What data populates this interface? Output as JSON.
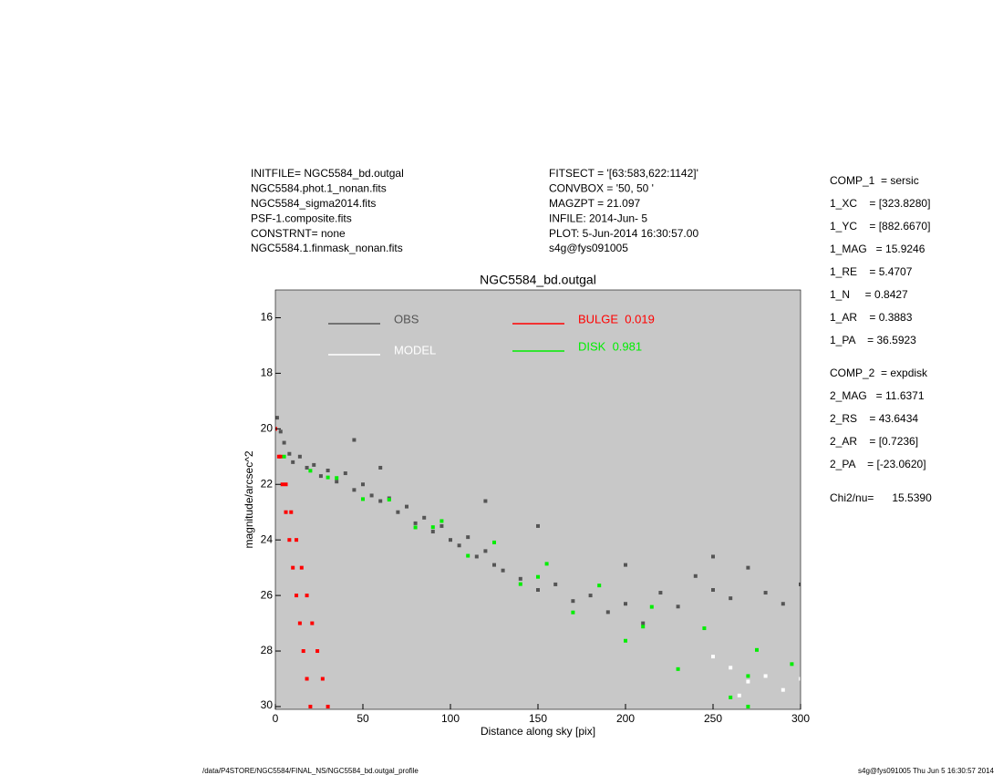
{
  "chart_data": {
    "type": "scatter",
    "title": "NGC5584_bd.outgal",
    "x_label": "Distance along sky [pix]",
    "y_label": "magnitude/arcsec^2",
    "xlim": [
      0,
      300
    ],
    "ylim": [
      15,
      30.1
    ],
    "y_inverted": true,
    "xticks": [
      0,
      50,
      100,
      150,
      200,
      250,
      300
    ],
    "yticks": [
      16,
      18,
      20,
      22,
      24,
      26,
      28,
      30
    ],
    "grid": false,
    "plot_background": "#c8c8c8",
    "series": [
      {
        "name": "OBS",
        "color": "#555555",
        "x": [
          1,
          3,
          5,
          8,
          10,
          14,
          18,
          22,
          26,
          30,
          35,
          40,
          45,
          50,
          55,
          60,
          65,
          70,
          75,
          80,
          85,
          90,
          95,
          100,
          105,
          110,
          115,
          120,
          125,
          130,
          140,
          150,
          160,
          170,
          180,
          190,
          200,
          210,
          220,
          230,
          240,
          250,
          260,
          270,
          280,
          290,
          300,
          45,
          60,
          120,
          150,
          200,
          250
        ],
        "values": [
          19.6,
          20.1,
          20.5,
          20.9,
          21.2,
          21.0,
          21.4,
          21.3,
          21.7,
          21.5,
          21.9,
          21.6,
          22.2,
          22.0,
          22.4,
          22.6,
          22.5,
          23.0,
          22.8,
          23.4,
          23.2,
          23.7,
          23.5,
          24.0,
          24.2,
          23.9,
          24.6,
          24.4,
          24.9,
          25.1,
          25.4,
          25.8,
          25.6,
          26.2,
          26.0,
          26.6,
          26.3,
          27.0,
          25.9,
          26.4,
          25.3,
          25.8,
          26.1,
          25.0,
          25.9,
          26.3,
          25.6,
          20.4,
          21.4,
          22.6,
          23.5,
          24.9,
          24.6
        ]
      },
      {
        "name": "MODEL",
        "color": "#ffffff",
        "x": [
          260,
          270,
          280,
          290,
          300,
          250,
          265
        ],
        "values": [
          28.6,
          29.1,
          28.9,
          29.4,
          29.0,
          28.2,
          29.6
        ]
      },
      {
        "name": "BULGE  0.019",
        "color": "#ff0000",
        "x": [
          0,
          2,
          4,
          6,
          8,
          10,
          12,
          14,
          16,
          18,
          20,
          3,
          6,
          9,
          12,
          15,
          18,
          21,
          24,
          27,
          30
        ],
        "values": [
          20,
          21,
          22,
          23,
          24,
          25,
          26,
          27,
          28,
          29,
          30,
          21,
          22,
          23,
          24,
          25,
          26,
          27,
          28,
          29,
          30
        ]
      },
      {
        "name": "DISK  0.981",
        "color": "#00ee00",
        "x": [
          5,
          35,
          65,
          95,
          125,
          155,
          185,
          215,
          245,
          275,
          295,
          20,
          50,
          80,
          110,
          140,
          170,
          200,
          230,
          260,
          270,
          30,
          90,
          150,
          210,
          270
        ],
        "values": [
          21.0,
          21.77,
          22.55,
          23.32,
          24.09,
          24.86,
          25.64,
          26.41,
          27.18,
          27.96,
          28.47,
          21.51,
          22.53,
          23.55,
          24.57,
          25.59,
          26.61,
          27.63,
          28.65,
          29.67,
          30.0,
          21.75,
          23.54,
          25.33,
          27.12,
          28.9
        ]
      }
    ],
    "header_left": [
      "INITFILE= NGC5584_bd.outgal",
      "NGC5584.phot.1_nonan.fits",
      "NGC5584_sigma2014.fits",
      "PSF-1.composite.fits",
      "CONSTRNT= none",
      "NGC5584.1.finmask_nonan.fits"
    ],
    "header_middle": [
      "FITSECT = '[63:583,622:1142]'",
      "CONVBOX = '50, 50  '",
      "MAGZPT  =            21.097",
      "INFILE: 2014-Jun- 5",
      "PLOT:  5-Jun-2014 16:30:57.00",
      "s4g@fys091005"
    ],
    "params": [
      "COMP_1  = sersic",
      "1_XC    = [323.8280]",
      "1_YC    = [882.6670]",
      "1_MAG   = 15.9246",
      "1_RE    = 5.4707",
      "1_N     = 0.8427",
      "1_AR    = 0.3883",
      "1_PA    = 36.5923",
      "COMP_2  = expdisk",
      "2_MAG   = 11.6371",
      "2_RS    = 43.6434",
      "2_AR    = [0.7236]",
      "2_PA    = [-23.0620]",
      "Chi2/nu=      15.5390"
    ],
    "footer_left": "/data/P4STORE/NGC5584/FINAL_NS/NGC5584_bd.outgal_profile",
    "footer_right": "s4g@fys091005  Thu Jun  5 16:30:57 2014"
  }
}
